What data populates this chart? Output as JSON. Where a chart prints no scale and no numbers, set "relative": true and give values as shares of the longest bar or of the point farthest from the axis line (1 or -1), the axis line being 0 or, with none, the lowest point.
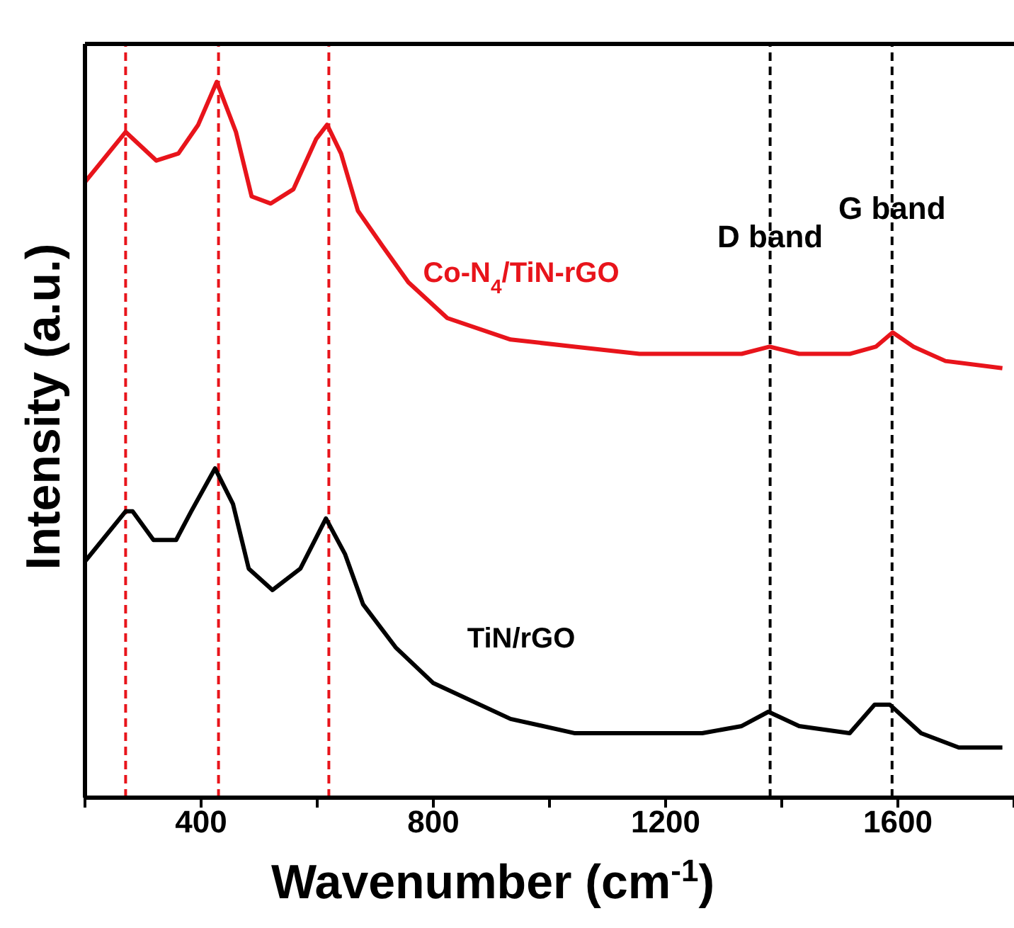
{
  "chart_data": {
    "type": "line",
    "xlabel": "Wavenumber (cm$^{-1}$)",
    "ylabel": "Intensity (a.u.)",
    "relative": true,
    "xlim": [
      200,
      1800
    ],
    "xticks": [
      {
        "value": 200,
        "label": null
      },
      400,
      {
        "value": 600,
        "label": null
      },
      800,
      {
        "value": 1000,
        "label": null
      },
      1200,
      {
        "value": 1400,
        "label": null
      },
      1600,
      {
        "value": 1800,
        "label": null
      }
    ],
    "marker": "none",
    "line_style": "solid",
    "series": [
      {
        "name": "Co-N$_{4}$/TiN-rGO",
        "color": "#e8141b",
        "x": [
          200,
          270,
          323,
          361,
          395,
          427,
          460,
          487,
          520,
          559,
          598,
          617,
          641,
          670,
          713,
          757,
          824,
          933,
          1044,
          1155,
          1263,
          1331,
          1379,
          1430,
          1517,
          1562,
          1591,
          1627,
          1682,
          1780
        ],
        "values": [
          0.86,
          0.93,
          0.89,
          0.9,
          0.94,
          1.0,
          0.93,
          0.84,
          0.83,
          0.85,
          0.92,
          0.94,
          0.9,
          0.82,
          0.77,
          0.72,
          0.67,
          0.64,
          0.63,
          0.62,
          0.62,
          0.62,
          0.63,
          0.62,
          0.62,
          0.63,
          0.65,
          0.63,
          0.61,
          0.6
        ]
      },
      {
        "name": "TiN/rGO",
        "color": "#000000",
        "x": [
          200,
          270,
          282,
          318,
          357,
          383,
          424,
          455,
          482,
          523,
          571,
          615,
          648,
          679,
          735,
          800,
          933,
          1044,
          1155,
          1263,
          1331,
          1377,
          1430,
          1517,
          1560,
          1586,
          1640,
          1705,
          1780
        ],
        "values": [
          0.33,
          0.4,
          0.4,
          0.36,
          0.36,
          0.4,
          0.46,
          0.41,
          0.32,
          0.29,
          0.32,
          0.39,
          0.34,
          0.27,
          0.21,
          0.16,
          0.11,
          0.09,
          0.09,
          0.09,
          0.1,
          0.12,
          0.1,
          0.09,
          0.13,
          0.13,
          0.09,
          0.07,
          0.07
        ]
      }
    ],
    "ref_lines": [
      {
        "axis": "x",
        "value": 270,
        "color": "#e8141b",
        "line_style": "dashed"
      },
      {
        "axis": "x",
        "value": 430,
        "color": "#e8141b",
        "line_style": "dashed"
      },
      {
        "axis": "x",
        "value": 620,
        "color": "#e8141b",
        "line_style": "dashed"
      },
      {
        "axis": "x",
        "value": 1380,
        "label": "D band",
        "color": "#000000",
        "line_style": "dashed"
      },
      {
        "axis": "x",
        "value": 1590,
        "label": "G band",
        "color": "#000000",
        "line_style": "dashed"
      }
    ]
  }
}
